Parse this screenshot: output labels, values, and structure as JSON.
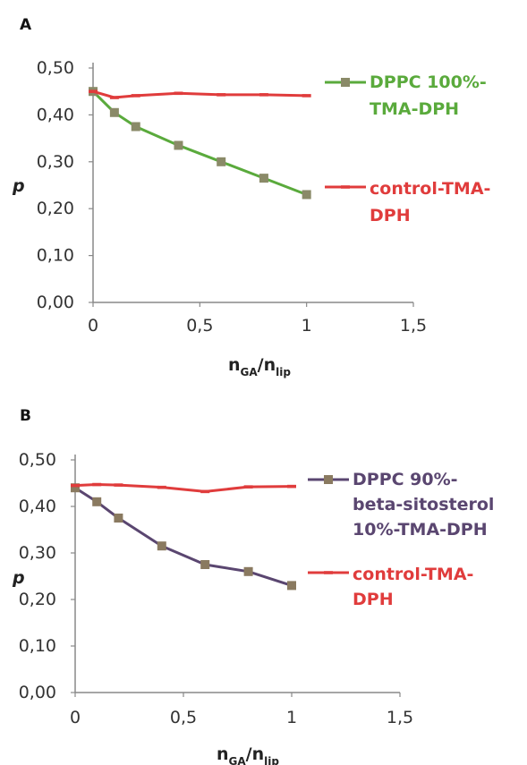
{
  "chart_data": [
    {
      "type": "line",
      "panel_label": "A",
      "ylabel": "p",
      "xlabel": {
        "base": "n",
        "sub1": "GA",
        "slash": "/",
        "base2": "n",
        "sub2": "lip"
      },
      "xlim": [
        0,
        1.5
      ],
      "ylim": [
        0,
        0.5
      ],
      "x_ticks": [
        "0",
        "0,5",
        "1",
        "1,5"
      ],
      "x_tick_values": [
        0,
        0.5,
        1,
        1.5
      ],
      "y_ticks": [
        "0,00",
        "0,10",
        "0,20",
        "0,30",
        "0,40",
        "0,50"
      ],
      "y_tick_values": [
        0,
        0.1,
        0.2,
        0.3,
        0.4,
        0.5
      ],
      "grid": false,
      "legend_position": "right",
      "series": [
        {
          "name_lines": [
            "DPPC 100%-",
            "TMA-DPH"
          ],
          "color": "#5aaa3c",
          "marker_color": "#8a8a68",
          "marker": "square",
          "x": [
            0,
            0.1,
            0.2,
            0.4,
            0.6,
            0.8,
            1
          ],
          "y": [
            0.45,
            0.405,
            0.375,
            0.335,
            0.3,
            0.265,
            0.23
          ]
        },
        {
          "name_lines": [
            "control-TMA-",
            "DPH"
          ],
          "color": "#e03c3c",
          "marker_color": "#e03c3c",
          "marker": "dash",
          "x": [
            0,
            0.1,
            0.2,
            0.4,
            0.6,
            0.8,
            1
          ],
          "y": [
            0.45,
            0.437,
            0.441,
            0.446,
            0.443,
            0.443,
            0.441
          ]
        }
      ]
    },
    {
      "type": "line",
      "panel_label": "B",
      "ylabel": "p",
      "xlabel": {
        "base": "n",
        "sub1": "GA",
        "slash": "/",
        "base2": "n",
        "sub2": "lip"
      },
      "xlim": [
        0,
        1.5
      ],
      "ylim": [
        0,
        0.5
      ],
      "x_ticks": [
        "0",
        "0,5",
        "1",
        "1,5"
      ],
      "x_tick_values": [
        0,
        0.5,
        1,
        1.5
      ],
      "y_ticks": [
        "0,00",
        "0,10",
        "0,20",
        "0,30",
        "0,40",
        "0,50"
      ],
      "y_tick_values": [
        0,
        0.1,
        0.2,
        0.3,
        0.4,
        0.5
      ],
      "grid": false,
      "legend_position": "right",
      "series": [
        {
          "name_lines": [
            "DPPC 90%-",
            "beta-sitosterol",
            "10%-TMA-DPH"
          ],
          "color": "#5a4670",
          "marker_color": "#8a7a60",
          "marker": "square",
          "x": [
            0,
            0.1,
            0.2,
            0.4,
            0.6,
            0.8,
            1
          ],
          "y": [
            0.44,
            0.41,
            0.375,
            0.315,
            0.275,
            0.26,
            0.23
          ]
        },
        {
          "name_lines": [
            "control-TMA-",
            "DPH"
          ],
          "color": "#e03c3c",
          "marker_color": "#e03c3c",
          "marker": "dash",
          "x": [
            0,
            0.1,
            0.2,
            0.4,
            0.6,
            0.8,
            1
          ],
          "y": [
            0.445,
            0.447,
            0.446,
            0.441,
            0.432,
            0.442,
            0.443
          ]
        }
      ]
    }
  ]
}
